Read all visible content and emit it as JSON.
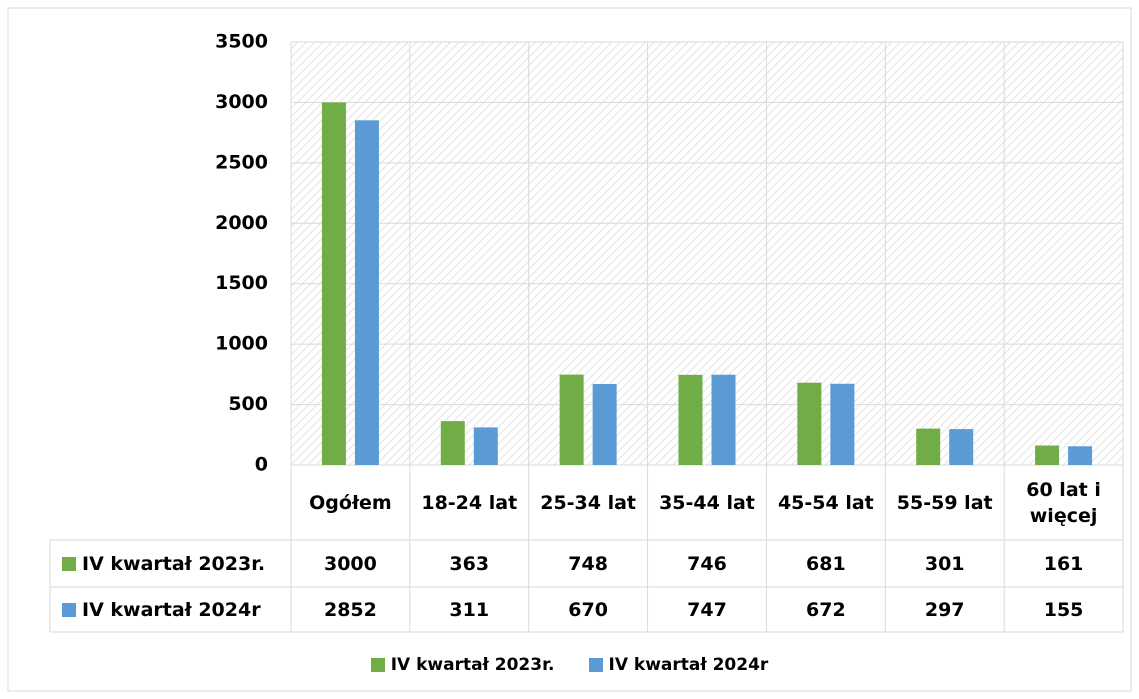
{
  "chart_data": {
    "type": "bar",
    "categories": [
      "Ogółem",
      "18-24 lat",
      "25-34 lat",
      "35-44 lat",
      "45-54 lat",
      "55-59 lat",
      "60 lat i więcej"
    ],
    "series": [
      {
        "name": "IV kwartał 2023r.",
        "color": "#70ad47",
        "values": [
          3000,
          363,
          748,
          746,
          681,
          301,
          161
        ]
      },
      {
        "name": "IV kwartał 2024r",
        "color": "#5b9bd5",
        "values": [
          2852,
          311,
          670,
          747,
          672,
          297,
          155
        ]
      }
    ],
    "ylim": [
      0,
      3500
    ],
    "yticks": [
      0,
      500,
      1000,
      1500,
      2000,
      2500,
      3000,
      3500
    ],
    "grid": true,
    "legend": "bottom"
  }
}
